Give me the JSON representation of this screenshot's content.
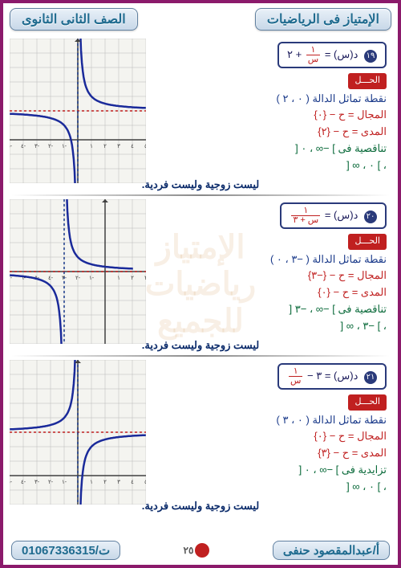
{
  "header": {
    "right": "الإمتياز فى الرياضيات",
    "left": "الصف الثانى الثانوى"
  },
  "sections": [
    {
      "qnum": "١٩",
      "formula_prefix": "د(س) = ",
      "formula_frac_n": "١",
      "formula_frac_d": "س",
      "formula_suffix": " + ٢",
      "sol_label": "الحـــل",
      "symmetry": "نقطة تماثل الدالة ( ٠ ، ٢ )",
      "domain": "المجال = ح − {٠}",
      "range": "المدى = ح − {٢}",
      "mono": "تناقصية فى ] −∞ ، ٠ [",
      "mono2": "، ] ٠ ، ∞ [",
      "parity": "ليست زوجية وليست فردية.",
      "chart": {
        "type": "reciprocal",
        "h": 0,
        "k": 2,
        "a": 1,
        "x_range": [
          -5,
          5
        ],
        "y_range": [
          -3,
          7
        ],
        "asym_h_color": "#c02020",
        "asym_v_color": "#1a3a8a",
        "curve_color": "#1a2a9a",
        "grid_color": "#b8b8b8",
        "axis_color": "#404040",
        "bg": "#f4f4f0"
      }
    },
    {
      "qnum": "٢٠",
      "formula_prefix": "د(س) = ",
      "formula_frac_n": "١",
      "formula_frac_d": "س + ٣",
      "formula_suffix": "",
      "sol_label": "الحـــل",
      "symmetry": "نقطة تماثل الدالة ( −٣ ، ٠ )",
      "domain": "المجال = ح − {−٣}",
      "range": "المدى = ح − {٠}",
      "mono": "تناقصية فى ] −∞ ، −٣ [",
      "mono2": "، ] −٣ ، ∞ [",
      "parity": "ليست زوجية وليست فردية.",
      "chart": {
        "type": "reciprocal",
        "h": -3,
        "k": 0,
        "a": 1,
        "x_range": [
          -7,
          3
        ],
        "y_range": [
          -5,
          5
        ],
        "asym_h_color": "#c02020",
        "asym_v_color": "#1a3a8a",
        "curve_color": "#1a2a9a",
        "grid_color": "#b8b8b8",
        "axis_color": "#404040",
        "bg": "#f4f4f0"
      }
    },
    {
      "qnum": "٢١",
      "formula_prefix": "د(س) = ٣ − ",
      "formula_frac_n": "١",
      "formula_frac_d": "س",
      "formula_suffix": "",
      "sol_label": "الحـــل",
      "symmetry": "نقطة تماثل الدالة ( ٠ ، ٣ )",
      "domain": "المجال = ح − {٠}",
      "range": "المدى = ح − {٣}",
      "mono": "تزايدية فى ] −∞ ، ٠ [",
      "mono2": "، ] ٠ ، ∞ [",
      "parity": "ليست زوجية وليست فردية.",
      "chart": {
        "type": "reciprocal",
        "h": 0,
        "k": 3,
        "a": -1,
        "x_range": [
          -5,
          5
        ],
        "y_range": [
          -2,
          8
        ],
        "asym_h_color": "#c02020",
        "asym_v_color": "#1a3a8a",
        "curve_color": "#1a2a9a",
        "grid_color": "#b8b8b8",
        "axis_color": "#404040",
        "bg": "#f4f4f0"
      }
    }
  ],
  "footer": {
    "teacher": "أ/عبدالمقصود حنفى",
    "phone": "ت/01067336315",
    "page": "٢٥"
  },
  "watermark": "الإمتياز\nرياضيات للجميع"
}
